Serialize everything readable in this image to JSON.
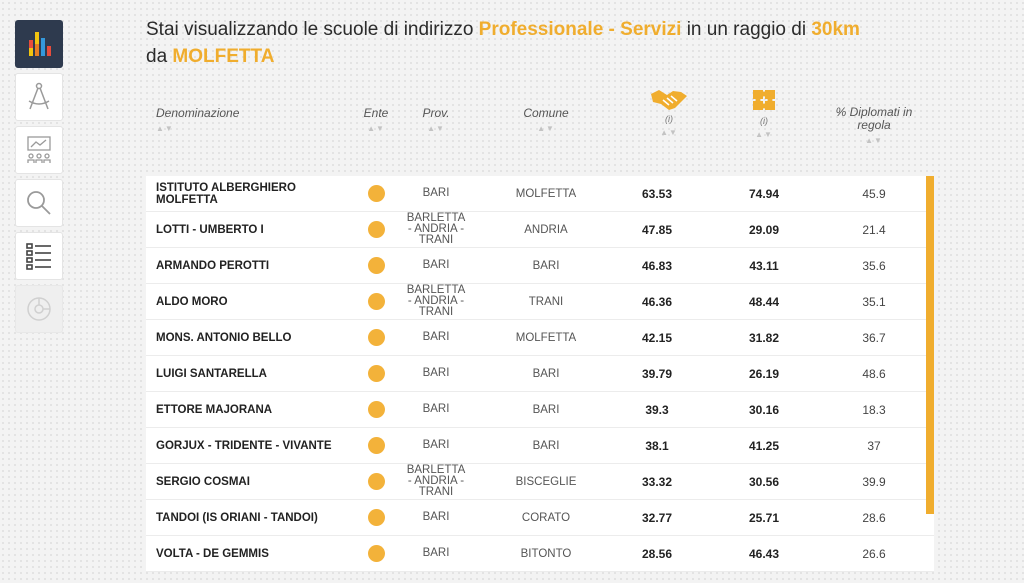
{
  "heading": {
    "prefix": "Stai visualizzando le scuole di indirizzo",
    "indirizzo": "Professionale - Servizi",
    "middle": "in un raggio di",
    "radius": "30km",
    "da": "da",
    "city": "MOLFETTA"
  },
  "sidebar": [
    {
      "name": "chart-bars-icon",
      "state": "active"
    },
    {
      "name": "compass-icon",
      "state": "normal"
    },
    {
      "name": "classroom-icon",
      "state": "normal"
    },
    {
      "name": "search-icon",
      "state": "normal"
    },
    {
      "name": "list-icon",
      "state": "normal"
    },
    {
      "name": "pie-chart-icon",
      "state": "disabled"
    }
  ],
  "columns": {
    "denominazione": "Denominazione",
    "ente": "Ente",
    "prov": "Prov.",
    "comune": "Comune",
    "indicator1_icon": "handshake-icon",
    "indicator1_info": "(i)",
    "indicator2_icon": "puzzle-icon",
    "indicator2_info": "(i)",
    "diplomati": "% Diplomati in regola",
    "sort_glyph": "▲▼"
  },
  "colors": {
    "accent": "#f0ad2e",
    "dot": "#f3b23a",
    "sidebar_active": "#2e3a4e"
  },
  "rows": [
    {
      "name": "ISTITUTO ALBERGHIERO MOLFETTA",
      "prov": "BARI",
      "comune": "MOLFETTA",
      "v1": "63.53",
      "v2": "74.94",
      "v3": "45.9"
    },
    {
      "name": "LOTTI - UMBERTO I",
      "prov": "BARLETTA - ANDRIA - TRANI",
      "comune": "ANDRIA",
      "v1": "47.85",
      "v2": "29.09",
      "v3": "21.4"
    },
    {
      "name": "ARMANDO PEROTTI",
      "prov": "BARI",
      "comune": "BARI",
      "v1": "46.83",
      "v2": "43.11",
      "v3": "35.6"
    },
    {
      "name": "ALDO MORO",
      "prov": "BARLETTA - ANDRIA - TRANI",
      "comune": "TRANI",
      "v1": "46.36",
      "v2": "48.44",
      "v3": "35.1"
    },
    {
      "name": "MONS. ANTONIO BELLO",
      "prov": "BARI",
      "comune": "MOLFETTA",
      "v1": "42.15",
      "v2": "31.82",
      "v3": "36.7"
    },
    {
      "name": "LUIGI SANTARELLA",
      "prov": "BARI",
      "comune": "BARI",
      "v1": "39.79",
      "v2": "26.19",
      "v3": "48.6"
    },
    {
      "name": "ETTORE MAJORANA",
      "prov": "BARI",
      "comune": "BARI",
      "v1": "39.3",
      "v2": "30.16",
      "v3": "18.3"
    },
    {
      "name": "GORJUX - TRIDENTE - VIVANTE",
      "prov": "BARI",
      "comune": "BARI",
      "v1": "38.1",
      "v2": "41.25",
      "v3": "37"
    },
    {
      "name": "SERGIO COSMAI",
      "prov": "BARLETTA - ANDRIA - TRANI",
      "comune": "BISCEGLIE",
      "v1": "33.32",
      "v2": "30.56",
      "v3": "39.9"
    },
    {
      "name": "TANDOI (IS ORIANI - TANDOI)",
      "prov": "BARI",
      "comune": "CORATO",
      "v1": "32.77",
      "v2": "25.71",
      "v3": "28.6"
    },
    {
      "name": "VOLTA - DE GEMMIS",
      "prov": "BARI",
      "comune": "BITONTO",
      "v1": "28.56",
      "v2": "46.43",
      "v3": "26.6"
    }
  ]
}
